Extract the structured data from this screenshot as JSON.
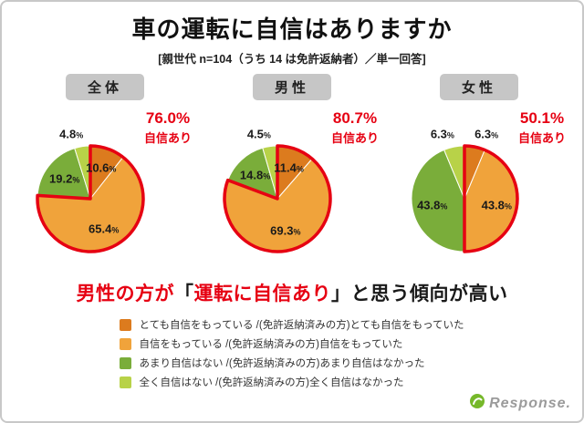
{
  "header": {
    "title": "車の運転に自信はありますか",
    "subtitle": "[親世代 n=104（うち 14 は免許返納者）／単一回答]"
  },
  "chart_data": {
    "type": "pie",
    "title": "車の運転に自信はありますか",
    "note": "親世代 n=104（うち 14 は免許返納者）／単一回答",
    "unit": "%",
    "confidence_label": "自信あり",
    "categories": [
      "とても自信をもっている /(免許返納済みの方)とても自信をもっていた",
      "自信をもっている /(免許返納済みの方)自信をもっていた",
      "あまり自信はない /(免許返納済みの方)あまり自信はなかった",
      "全く自信はない /(免許返納済みの方)全く自信はなかった"
    ],
    "colors": [
      "#dc7b1e",
      "#f0a33b",
      "#7aad3a",
      "#b8d248"
    ],
    "outline_color": "#e60012",
    "charts": [
      {
        "label": "全体",
        "values": [
          10.6,
          65.4,
          19.2,
          4.8
        ],
        "confident_total": "76.0%"
      },
      {
        "label": "男性",
        "values": [
          11.4,
          69.3,
          14.8,
          4.5
        ],
        "confident_total": "80.7%"
      },
      {
        "label": "女性",
        "values": [
          6.3,
          43.8,
          43.8,
          6.3
        ],
        "confident_total": "50.1%"
      }
    ]
  },
  "message": {
    "segments": [
      {
        "text": "男性の方が",
        "color": "#e60012"
      },
      {
        "text": "「",
        "color": "#1a1a1a"
      },
      {
        "text": "運転に自信あり",
        "color": "#e60012"
      },
      {
        "text": "」と思う傾向が高い",
        "color": "#1a1a1a"
      }
    ]
  },
  "legend": {
    "items": [
      {
        "text": "とても自信をもっている /(免許返納済みの方)とても自信をもっていた",
        "color": "#dc7b1e"
      },
      {
        "text": "自信をもっている /(免許返納済みの方)自信をもっていた",
        "color": "#f0a33b"
      },
      {
        "text": "あまり自信はない /(免許返納済みの方)あまり自信はなかった",
        "color": "#7aad3a"
      },
      {
        "text": "全く自信はない /(免許返納済みの方)全く自信はなかった",
        "color": "#b8d248"
      }
    ]
  },
  "watermark": {
    "text": "Response."
  }
}
